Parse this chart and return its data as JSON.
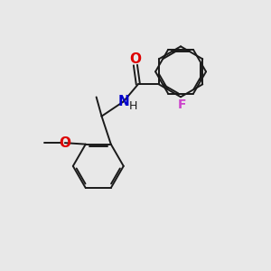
{
  "background_color": "#e8e8e8",
  "bond_color": "#1a1a1a",
  "atom_colors": {
    "O": "#dd0000",
    "N": "#0000cc",
    "F": "#cc44cc",
    "C": "#1a1a1a",
    "H": "#1a1a1a"
  },
  "figsize": [
    3.0,
    3.0
  ],
  "dpi": 100,
  "lw": 1.4,
  "r": 0.95
}
